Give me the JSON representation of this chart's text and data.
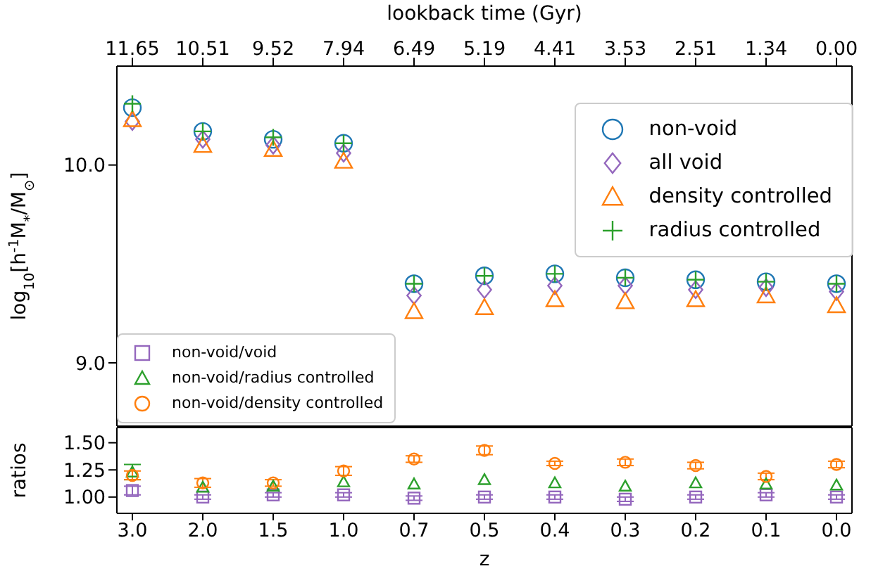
{
  "chart_data": [
    {
      "type": "scatter",
      "ylabel": "log$_{10}$[h$^{-1}$M$_{*}$/M$_{⊙}$]",
      "x2label": "lookback time (Gyr)",
      "categories": [
        "3.0",
        "2.0",
        "1.5",
        "1.0",
        "0.7",
        "0.5",
        "0.4",
        "0.3",
        "0.2",
        "0.1",
        "0.0"
      ],
      "annotations": [
        "11.65",
        "10.51",
        "9.52",
        "7.94",
        "6.49",
        "5.19",
        "4.41",
        "3.53",
        "2.51",
        "1.34",
        "0.00"
      ],
      "ylim": [
        8.68,
        10.5
      ],
      "yticks": [
        {
          "value": 9,
          "label": "9.0"
        },
        {
          "value": 10,
          "label": "10.0"
        }
      ],
      "tick_labels": "y",
      "legend": "top right",
      "grid": false,
      "series": [
        {
          "name": "non-void",
          "color": "#1f77b4",
          "marker": "circle",
          "values": [
            10.29,
            10.17,
            10.13,
            10.11,
            9.4,
            9.44,
            9.45,
            9.43,
            9.42,
            9.41,
            9.4
          ]
        },
        {
          "name": "all void",
          "color": "#9467bd",
          "marker": "diamond",
          "values": [
            10.22,
            10.13,
            10.1,
            10.06,
            9.34,
            9.37,
            9.39,
            9.39,
            9.37,
            9.38,
            9.36
          ]
        },
        {
          "name": "density controlled",
          "color": "#ff7f0e",
          "marker": "triangle",
          "values": [
            10.23,
            10.1,
            10.08,
            10.02,
            9.26,
            9.28,
            9.32,
            9.31,
            9.32,
            9.34,
            9.29
          ]
        },
        {
          "name": "radius controlled",
          "color": "#2ca02c",
          "marker": "cross",
          "values": [
            10.31,
            10.17,
            10.14,
            10.11,
            9.4,
            9.44,
            9.45,
            9.43,
            9.42,
            9.41,
            9.4
          ]
        }
      ]
    },
    {
      "type": "scatter",
      "ylabel": "ratios",
      "xlabel": "z",
      "categories": [
        "3.0",
        "2.0",
        "1.5",
        "1.0",
        "0.7",
        "0.5",
        "0.4",
        "0.3",
        "0.2",
        "0.1",
        "0.0"
      ],
      "ylim": [
        0.85,
        1.64
      ],
      "yticks": [
        {
          "value": 1,
          "label": "1.00"
        },
        {
          "value": 1.25,
          "label": "1.25"
        },
        {
          "value": 1.5,
          "label": "1.50"
        }
      ],
      "legend": "top left",
      "grid": false,
      "series": [
        {
          "name": "non-void/void",
          "color": "#9467bd",
          "marker": "square",
          "values": [
            1.06,
            1.0,
            1.02,
            1.02,
            0.99,
            1.0,
            1.0,
            0.98,
            1.0,
            1.02,
            1.0
          ],
          "errors": [
            0.04,
            0.02,
            0.02,
            0.02,
            0.02,
            0.02,
            0.02,
            0.02,
            0.02,
            0.02,
            0.02
          ]
        },
        {
          "name": "non-void/radius controlled",
          "color": "#2ca02c",
          "marker": "triangle",
          "values": [
            1.23,
            1.09,
            1.1,
            1.14,
            1.12,
            1.16,
            1.13,
            1.1,
            1.13,
            1.12,
            1.11
          ],
          "errors": [
            0.07,
            null,
            null,
            null,
            null,
            null,
            null,
            null,
            null,
            null,
            null
          ]
        },
        {
          "name": "non-void/density controlled",
          "color": "#ff7f0e",
          "marker": "circle",
          "values": [
            1.2,
            1.13,
            1.13,
            1.24,
            1.35,
            1.43,
            1.31,
            1.32,
            1.29,
            1.19,
            1.3
          ],
          "errors": [
            0.04,
            0.04,
            0.03,
            0.04,
            0.03,
            0.04,
            0.02,
            0.03,
            0.03,
            0.03,
            0.03
          ]
        }
      ]
    }
  ]
}
